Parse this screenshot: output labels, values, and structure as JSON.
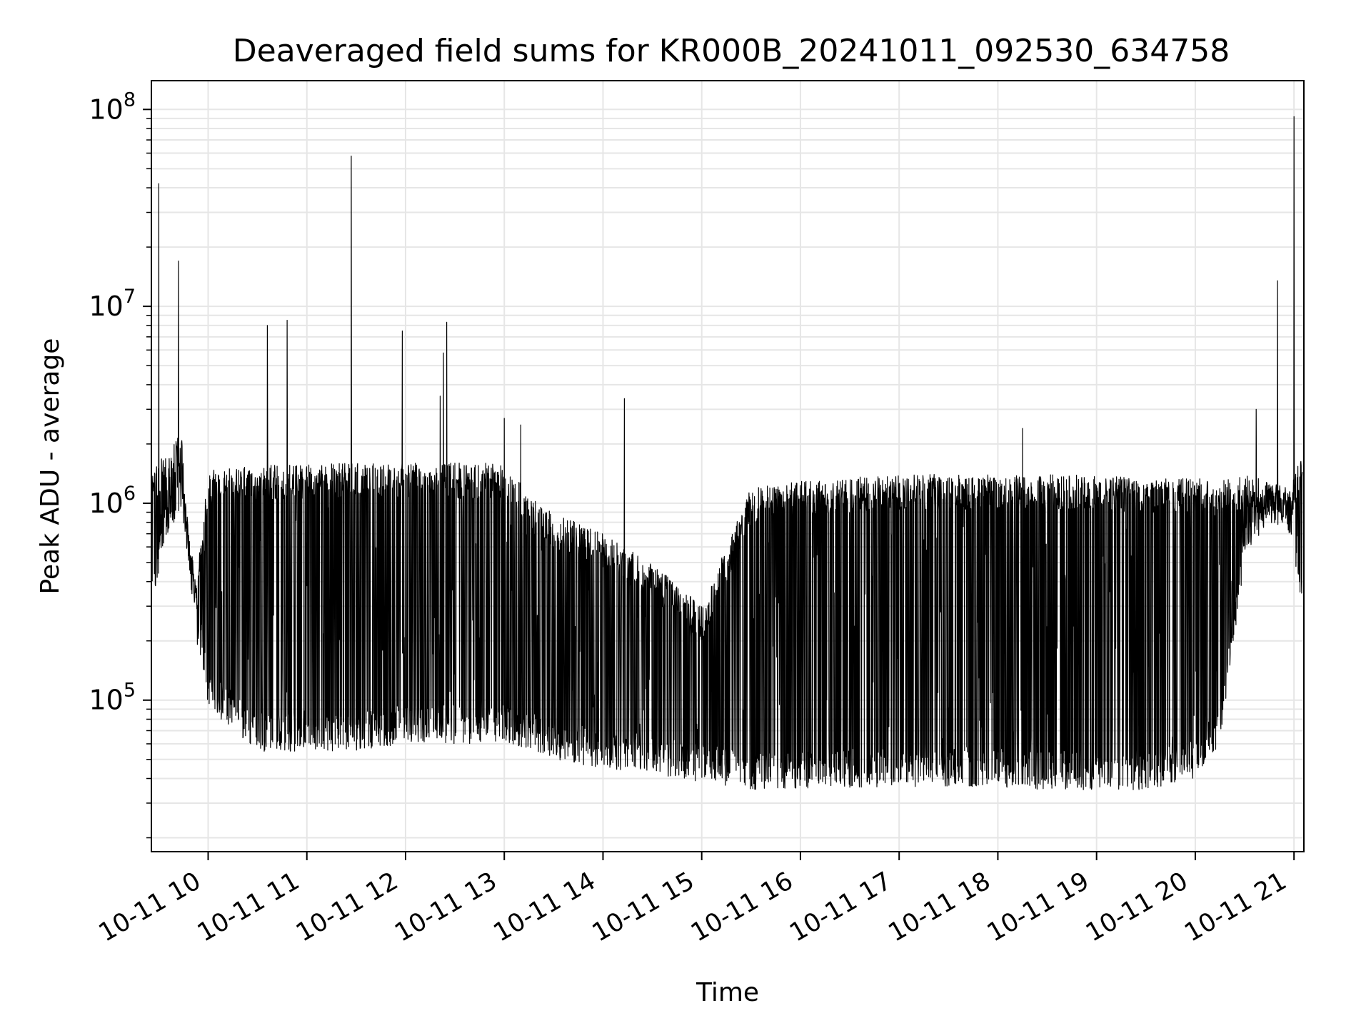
{
  "chart_data": {
    "type": "line",
    "title": "Deaveraged field sums for KR000B_20241011_092530_634758",
    "xlabel": "Time",
    "ylabel": "Peak ADU - average",
    "yscale": "log",
    "ylim": [
      17000,
      140000000
    ],
    "xlim": [
      "2024-10-11 09:25:30",
      "2024-10-11 21:06:00"
    ],
    "grid": true,
    "line_color": "#000000",
    "grid_color": "#e6e6e6",
    "x_ticks": [
      {
        "time": "2024-10-11 10:00",
        "label": "10-11 10"
      },
      {
        "time": "2024-10-11 11:00",
        "label": "10-11 11"
      },
      {
        "time": "2024-10-11 12:00",
        "label": "10-11 12"
      },
      {
        "time": "2024-10-11 13:00",
        "label": "10-11 13"
      },
      {
        "time": "2024-10-11 14:00",
        "label": "10-11 14"
      },
      {
        "time": "2024-10-11 15:00",
        "label": "10-11 15"
      },
      {
        "time": "2024-10-11 16:00",
        "label": "10-11 16"
      },
      {
        "time": "2024-10-11 17:00",
        "label": "10-11 17"
      },
      {
        "time": "2024-10-11 18:00",
        "label": "10-11 18"
      },
      {
        "time": "2024-10-11 19:00",
        "label": "10-11 19"
      },
      {
        "time": "2024-10-11 20:00",
        "label": "10-11 20"
      },
      {
        "time": "2024-10-11 21:00",
        "label": "10-11 21"
      }
    ],
    "y_ticks": [
      {
        "value": 100000,
        "base": "10",
        "exp": "5"
      },
      {
        "value": 1000000,
        "base": "10",
        "exp": "6"
      },
      {
        "value": 10000000,
        "base": "10",
        "exp": "7"
      },
      {
        "value": 100000000,
        "base": "10",
        "exp": "8"
      }
    ],
    "envelope": [
      {
        "time": "2024-10-11 09:26",
        "low": 300000,
        "high": 1500000
      },
      {
        "time": "2024-10-11 09:35",
        "low": 700000,
        "high": 1800000
      },
      {
        "time": "2024-10-11 09:44",
        "low": 900000,
        "high": 2300000
      },
      {
        "time": "2024-10-11 09:48",
        "low": 500000,
        "high": 700000
      },
      {
        "time": "2024-10-11 09:53",
        "low": 200000,
        "high": 400000
      },
      {
        "time": "2024-10-11 10:00",
        "low": 90000,
        "high": 1500000
      },
      {
        "time": "2024-10-11 10:30",
        "low": 55000,
        "high": 1550000
      },
      {
        "time": "2024-10-11 11:00",
        "low": 55000,
        "high": 1600000
      },
      {
        "time": "2024-10-11 11:30",
        "low": 55000,
        "high": 1600000
      },
      {
        "time": "2024-10-11 12:00",
        "low": 60000,
        "high": 1600000
      },
      {
        "time": "2024-10-11 12:30",
        "low": 60000,
        "high": 1600000
      },
      {
        "time": "2024-10-11 13:00",
        "low": 60000,
        "high": 1600000
      },
      {
        "time": "2024-10-11 13:20",
        "low": 55000,
        "high": 1000000
      },
      {
        "time": "2024-10-11 13:30",
        "low": 50000,
        "high": 900000
      },
      {
        "time": "2024-10-11 14:00",
        "low": 45000,
        "high": 700000
      },
      {
        "time": "2024-10-11 14:30",
        "low": 42000,
        "high": 500000
      },
      {
        "time": "2024-10-11 15:00",
        "low": 38000,
        "high": 300000
      },
      {
        "time": "2024-10-11 15:30",
        "low": 35000,
        "high": 1200000
      },
      {
        "time": "2024-10-11 16:00",
        "low": 35000,
        "high": 1300000
      },
      {
        "time": "2024-10-11 16:30",
        "low": 36000,
        "high": 1350000
      },
      {
        "time": "2024-10-11 17:00",
        "low": 36000,
        "high": 1400000
      },
      {
        "time": "2024-10-11 17:30",
        "low": 36000,
        "high": 1400000
      },
      {
        "time": "2024-10-11 18:00",
        "low": 36000,
        "high": 1400000
      },
      {
        "time": "2024-10-11 18:30",
        "low": 35000,
        "high": 1400000
      },
      {
        "time": "2024-10-11 19:00",
        "low": 35000,
        "high": 1400000
      },
      {
        "time": "2024-10-11 19:30",
        "low": 35000,
        "high": 1350000
      },
      {
        "time": "2024-10-11 20:00",
        "low": 40000,
        "high": 1350000
      },
      {
        "time": "2024-10-11 20:15",
        "low": 60000,
        "high": 1300000
      },
      {
        "time": "2024-10-11 20:30",
        "low": 500000,
        "high": 1400000
      },
      {
        "time": "2024-10-11 20:45",
        "low": 800000,
        "high": 1300000
      },
      {
        "time": "2024-10-11 20:58",
        "low": 700000,
        "high": 1200000
      },
      {
        "time": "2024-10-11 21:05",
        "low": 300000,
        "high": 1800000
      }
    ],
    "spikes": [
      {
        "time": "2024-10-11 09:30",
        "value": 42000000
      },
      {
        "time": "2024-10-11 09:42",
        "value": 17000000
      },
      {
        "time": "2024-10-11 10:36",
        "value": 8000000
      },
      {
        "time": "2024-10-11 10:48",
        "value": 8500000
      },
      {
        "time": "2024-10-11 11:27",
        "value": 58000000
      },
      {
        "time": "2024-10-11 11:58",
        "value": 7500000
      },
      {
        "time": "2024-10-11 12:21",
        "value": 3500000
      },
      {
        "time": "2024-10-11 12:23",
        "value": 5800000
      },
      {
        "time": "2024-10-11 12:25",
        "value": 8300000
      },
      {
        "time": "2024-10-11 13:00",
        "value": 2700000
      },
      {
        "time": "2024-10-11 13:10",
        "value": 2500000
      },
      {
        "time": "2024-10-11 14:13",
        "value": 3400000
      },
      {
        "time": "2024-10-11 18:15",
        "value": 2400000
      },
      {
        "time": "2024-10-11 20:37",
        "value": 3000000
      },
      {
        "time": "2024-10-11 20:50",
        "value": 13500000
      },
      {
        "time": "2024-10-11 21:00",
        "value": 92000000
      }
    ]
  }
}
